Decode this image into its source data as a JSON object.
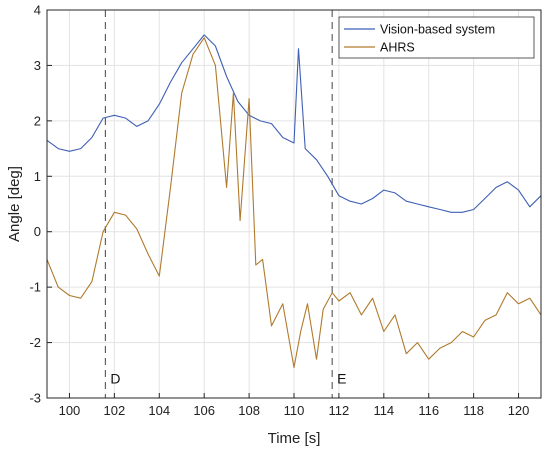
{
  "chart_data": {
    "type": "line",
    "xlabel": "Time [s]",
    "ylabel": "Angle [deg]",
    "xlim": [
      99,
      121
    ],
    "ylim": [
      -3,
      4
    ],
    "xticks": [
      100,
      102,
      104,
      106,
      108,
      110,
      112,
      114,
      116,
      118,
      120
    ],
    "yticks": [
      -3,
      -2,
      -1,
      0,
      1,
      2,
      3,
      4
    ],
    "grid": true,
    "legend_position": "top-right",
    "vlines": [
      {
        "x": 101.6,
        "label": "D",
        "label_y": -2.65
      },
      {
        "x": 111.7,
        "label": "E",
        "label_y": -2.65
      }
    ],
    "series": [
      {
        "name": "Vision-based system",
        "color": "#3f5fb4",
        "x": [
          99,
          99.5,
          100,
          100.5,
          101,
          101.5,
          102,
          102.5,
          103,
          103.5,
          104,
          104.5,
          105,
          105.5,
          106,
          106.5,
          107,
          107.5,
          108,
          108.5,
          109,
          109.5,
          110,
          110.2,
          110.5,
          111,
          111.5,
          112,
          112.5,
          113,
          113.5,
          114,
          114.5,
          115,
          115.5,
          116,
          116.5,
          117,
          117.5,
          118,
          118.5,
          119,
          119.5,
          120,
          120.5,
          121
        ],
        "values": [
          1.65,
          1.5,
          1.45,
          1.5,
          1.7,
          2.05,
          2.1,
          2.05,
          1.9,
          2.0,
          2.3,
          2.7,
          3.05,
          3.3,
          3.55,
          3.35,
          2.8,
          2.35,
          2.1,
          2.0,
          1.95,
          1.7,
          1.6,
          3.3,
          1.5,
          1.3,
          1.0,
          0.65,
          0.55,
          0.5,
          0.6,
          0.75,
          0.7,
          0.55,
          0.5,
          0.45,
          0.4,
          0.35,
          0.35,
          0.4,
          0.6,
          0.8,
          0.9,
          0.75,
          0.45,
          0.65
        ]
      },
      {
        "name": "AHRS",
        "color": "#b07a2e",
        "x": [
          99,
          99.5,
          100,
          100.5,
          101,
          101.5,
          102,
          102.5,
          103,
          103.5,
          104,
          104.5,
          105,
          105.5,
          106,
          106.5,
          107,
          107.3,
          107.6,
          108,
          108.3,
          108.6,
          109,
          109.5,
          110,
          110.3,
          110.6,
          111,
          111.3,
          111.7,
          112,
          112.5,
          113,
          113.5,
          114,
          114.5,
          115,
          115.5,
          116,
          116.5,
          117,
          117.5,
          118,
          118.5,
          119,
          119.5,
          120,
          120.5,
          121
        ],
        "values": [
          -0.5,
          -1.0,
          -1.15,
          -1.2,
          -0.9,
          0.0,
          0.35,
          0.3,
          0.05,
          -0.4,
          -0.8,
          0.8,
          2.5,
          3.2,
          3.5,
          3.0,
          0.8,
          2.5,
          0.2,
          2.4,
          -0.6,
          -0.5,
          -1.7,
          -1.3,
          -2.45,
          -1.8,
          -1.3,
          -2.3,
          -1.4,
          -1.1,
          -1.25,
          -1.1,
          -1.5,
          -1.2,
          -1.8,
          -1.5,
          -2.2,
          -2.0,
          -2.3,
          -2.1,
          -2.0,
          -1.8,
          -1.9,
          -1.6,
          -1.5,
          -1.1,
          -1.3,
          -1.2,
          -1.5
        ]
      }
    ]
  }
}
